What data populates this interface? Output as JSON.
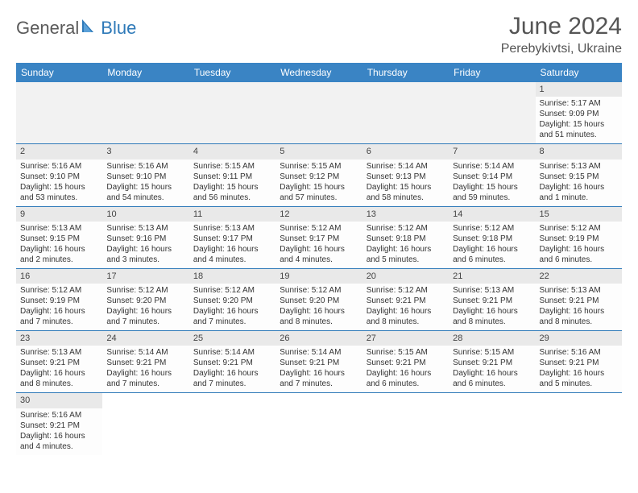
{
  "logo": {
    "part1": "General",
    "part2": "Blue"
  },
  "title": "June 2024",
  "location": "Perebykivtsi, Ukraine",
  "colors": {
    "header_bg": "#3a84c4",
    "header_text": "#ffffff",
    "border": "#2e79b8",
    "daynum_bg": "#e9e9e9",
    "empty_bg": "#f2f2f2",
    "text": "#333333",
    "logo_gray": "#5a5a5a",
    "logo_blue": "#2e79b8"
  },
  "weekdays": [
    "Sunday",
    "Monday",
    "Tuesday",
    "Wednesday",
    "Thursday",
    "Friday",
    "Saturday"
  ],
  "weeks": [
    [
      null,
      null,
      null,
      null,
      null,
      null,
      {
        "d": "1",
        "sr": "5:17 AM",
        "ss": "9:09 PM",
        "dl": "15 hours and 51 minutes."
      }
    ],
    [
      {
        "d": "2",
        "sr": "5:16 AM",
        "ss": "9:10 PM",
        "dl": "15 hours and 53 minutes."
      },
      {
        "d": "3",
        "sr": "5:16 AM",
        "ss": "9:10 PM",
        "dl": "15 hours and 54 minutes."
      },
      {
        "d": "4",
        "sr": "5:15 AM",
        "ss": "9:11 PM",
        "dl": "15 hours and 56 minutes."
      },
      {
        "d": "5",
        "sr": "5:15 AM",
        "ss": "9:12 PM",
        "dl": "15 hours and 57 minutes."
      },
      {
        "d": "6",
        "sr": "5:14 AM",
        "ss": "9:13 PM",
        "dl": "15 hours and 58 minutes."
      },
      {
        "d": "7",
        "sr": "5:14 AM",
        "ss": "9:14 PM",
        "dl": "15 hours and 59 minutes."
      },
      {
        "d": "8",
        "sr": "5:13 AM",
        "ss": "9:15 PM",
        "dl": "16 hours and 1 minute."
      }
    ],
    [
      {
        "d": "9",
        "sr": "5:13 AM",
        "ss": "9:15 PM",
        "dl": "16 hours and 2 minutes."
      },
      {
        "d": "10",
        "sr": "5:13 AM",
        "ss": "9:16 PM",
        "dl": "16 hours and 3 minutes."
      },
      {
        "d": "11",
        "sr": "5:13 AM",
        "ss": "9:17 PM",
        "dl": "16 hours and 4 minutes."
      },
      {
        "d": "12",
        "sr": "5:12 AM",
        "ss": "9:17 PM",
        "dl": "16 hours and 4 minutes."
      },
      {
        "d": "13",
        "sr": "5:12 AM",
        "ss": "9:18 PM",
        "dl": "16 hours and 5 minutes."
      },
      {
        "d": "14",
        "sr": "5:12 AM",
        "ss": "9:18 PM",
        "dl": "16 hours and 6 minutes."
      },
      {
        "d": "15",
        "sr": "5:12 AM",
        "ss": "9:19 PM",
        "dl": "16 hours and 6 minutes."
      }
    ],
    [
      {
        "d": "16",
        "sr": "5:12 AM",
        "ss": "9:19 PM",
        "dl": "16 hours and 7 minutes."
      },
      {
        "d": "17",
        "sr": "5:12 AM",
        "ss": "9:20 PM",
        "dl": "16 hours and 7 minutes."
      },
      {
        "d": "18",
        "sr": "5:12 AM",
        "ss": "9:20 PM",
        "dl": "16 hours and 7 minutes."
      },
      {
        "d": "19",
        "sr": "5:12 AM",
        "ss": "9:20 PM",
        "dl": "16 hours and 8 minutes."
      },
      {
        "d": "20",
        "sr": "5:12 AM",
        "ss": "9:21 PM",
        "dl": "16 hours and 8 minutes."
      },
      {
        "d": "21",
        "sr": "5:13 AM",
        "ss": "9:21 PM",
        "dl": "16 hours and 8 minutes."
      },
      {
        "d": "22",
        "sr": "5:13 AM",
        "ss": "9:21 PM",
        "dl": "16 hours and 8 minutes."
      }
    ],
    [
      {
        "d": "23",
        "sr": "5:13 AM",
        "ss": "9:21 PM",
        "dl": "16 hours and 8 minutes."
      },
      {
        "d": "24",
        "sr": "5:14 AM",
        "ss": "9:21 PM",
        "dl": "16 hours and 7 minutes."
      },
      {
        "d": "25",
        "sr": "5:14 AM",
        "ss": "9:21 PM",
        "dl": "16 hours and 7 minutes."
      },
      {
        "d": "26",
        "sr": "5:14 AM",
        "ss": "9:21 PM",
        "dl": "16 hours and 7 minutes."
      },
      {
        "d": "27",
        "sr": "5:15 AM",
        "ss": "9:21 PM",
        "dl": "16 hours and 6 minutes."
      },
      {
        "d": "28",
        "sr": "5:15 AM",
        "ss": "9:21 PM",
        "dl": "16 hours and 6 minutes."
      },
      {
        "d": "29",
        "sr": "5:16 AM",
        "ss": "9:21 PM",
        "dl": "16 hours and 5 minutes."
      }
    ],
    [
      {
        "d": "30",
        "sr": "5:16 AM",
        "ss": "9:21 PM",
        "dl": "16 hours and 4 minutes."
      },
      null,
      null,
      null,
      null,
      null,
      null
    ]
  ],
  "labels": {
    "sunrise": "Sunrise: ",
    "sunset": "Sunset: ",
    "daylight": "Daylight: "
  }
}
